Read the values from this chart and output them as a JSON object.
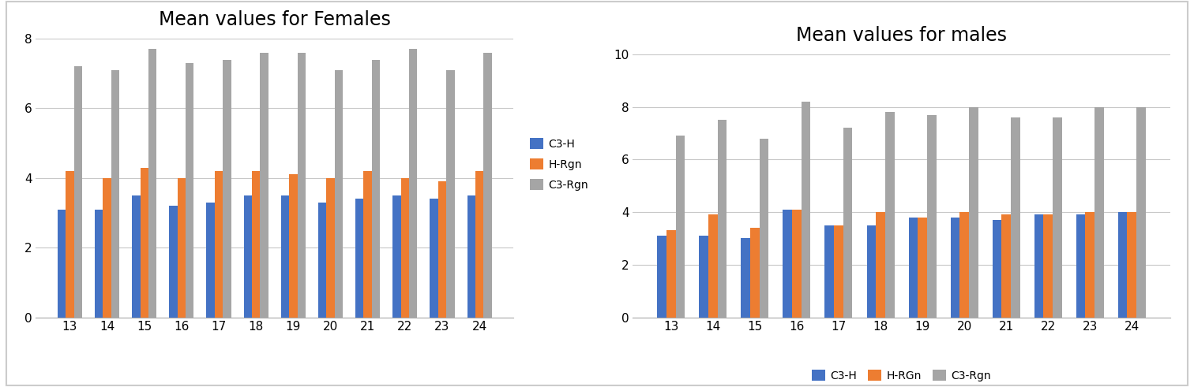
{
  "ages": [
    13,
    14,
    15,
    16,
    17,
    18,
    19,
    20,
    21,
    22,
    23,
    24
  ],
  "female": {
    "title": "Mean values for Females",
    "C3H": [
      3.1,
      3.1,
      3.5,
      3.2,
      3.3,
      3.5,
      3.5,
      3.3,
      3.4,
      3.5,
      3.4,
      3.5
    ],
    "HRgn": [
      4.2,
      4.0,
      4.3,
      4.0,
      4.2,
      4.2,
      4.1,
      4.0,
      4.2,
      4.0,
      3.9,
      4.2
    ],
    "C3Rgn": [
      7.2,
      7.1,
      7.7,
      7.3,
      7.4,
      7.6,
      7.6,
      7.1,
      7.4,
      7.7,
      7.1,
      7.6
    ],
    "ylim": [
      0,
      8
    ],
    "yticks": [
      0,
      2,
      4,
      6,
      8
    ],
    "legend_labels": [
      "C3-H",
      "H-Rgn",
      "C3-Rgn"
    ]
  },
  "male": {
    "title": "Mean values for males",
    "C3H": [
      3.1,
      3.1,
      3.0,
      4.1,
      3.5,
      3.5,
      3.8,
      3.8,
      3.7,
      3.9,
      3.9,
      4.0
    ],
    "HRgn": [
      3.3,
      3.9,
      3.4,
      4.1,
      3.5,
      4.0,
      3.8,
      4.0,
      3.9,
      3.9,
      4.0,
      4.0
    ],
    "C3Rgn": [
      6.9,
      7.5,
      6.8,
      8.2,
      7.2,
      7.8,
      7.7,
      8.0,
      7.6,
      7.6,
      8.0,
      8.0
    ],
    "ylim": [
      0,
      10
    ],
    "yticks": [
      0,
      2,
      4,
      6,
      8,
      10
    ],
    "legend_labels": [
      "C3-H",
      "H-RGn",
      "C3-Rgn"
    ]
  },
  "bar_colors": [
    "#4472c4",
    "#ed7d31",
    "#a5a5a5"
  ],
  "bar_width": 0.22,
  "background_color": "#ffffff",
  "title_fontsize": 17,
  "tick_fontsize": 11,
  "legend_fontsize": 10,
  "grid_color": "#c8c8c8",
  "border_color": "#cccccc"
}
